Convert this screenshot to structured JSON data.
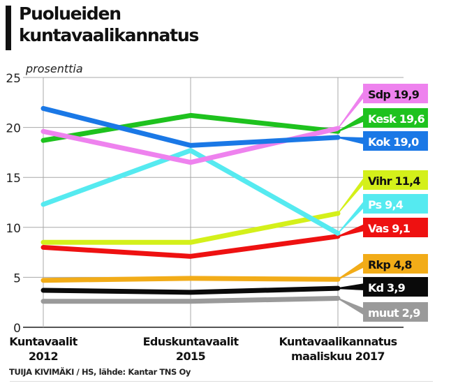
{
  "header": {
    "title_line1": "Puolueiden",
    "title_line2": "kuntavaalikannatus"
  },
  "footer": {
    "credit": "TUIJA KIVIMÄKI / HS, lähde: Kantar TNS Oy"
  },
  "chart_data": {
    "type": "line",
    "title": "Puolueiden kuntavaalikannatus",
    "ylabel": "prosenttia",
    "xlabel": "",
    "ylim": [
      0,
      25
    ],
    "yticks": [
      0,
      5,
      10,
      15,
      20,
      25
    ],
    "grid": true,
    "categories": [
      [
        "Kuntavaalit",
        "2012"
      ],
      [
        "Eduskuntavaalit",
        "2015"
      ],
      [
        "Kuntavaalikannatus",
        "maaliskuu 2017"
      ]
    ],
    "legend_placement": "right (end labels)",
    "series": [
      {
        "name": "Sdp",
        "label": "Sdp 19,9",
        "color": "#ee82ee",
        "label_text_color": "#111111",
        "values": [
          19.6,
          16.5,
          19.9
        ]
      },
      {
        "name": "Kesk",
        "label": "Kesk 19,6",
        "color": "#1ec21e",
        "label_text_color": "#ffffff",
        "values": [
          18.7,
          21.2,
          19.6
        ]
      },
      {
        "name": "Kok",
        "label": "Kok 19,0",
        "color": "#1a78e6",
        "label_text_color": "#ffffff",
        "values": [
          21.9,
          18.2,
          19.0
        ]
      },
      {
        "name": "Vihr",
        "label": "Vihr 11,4",
        "color": "#d4f01a",
        "label_text_color": "#111111",
        "values": [
          8.5,
          8.5,
          11.4
        ]
      },
      {
        "name": "Ps",
        "label": "Ps 9,4",
        "color": "#55eaf0",
        "label_text_color": "#ffffff",
        "values": [
          12.3,
          17.7,
          9.4
        ]
      },
      {
        "name": "Vas",
        "label": "Vas 9,1",
        "color": "#ee1111",
        "label_text_color": "#ffffff",
        "values": [
          8.0,
          7.1,
          9.1
        ]
      },
      {
        "name": "Rkp",
        "label": "Rkp 4,8",
        "color": "#f2ac18",
        "label_text_color": "#111111",
        "values": [
          4.7,
          4.9,
          4.8
        ]
      },
      {
        "name": "Kd",
        "label": "Kd 3,9",
        "color": "#0a0a0a",
        "label_text_color": "#ffffff",
        "values": [
          3.7,
          3.5,
          3.9
        ]
      },
      {
        "name": "muut",
        "label": "muut 2,9",
        "color": "#9a9a9a",
        "label_text_color": "#ffffff",
        "values": [
          2.6,
          2.6,
          2.9
        ]
      }
    ]
  }
}
